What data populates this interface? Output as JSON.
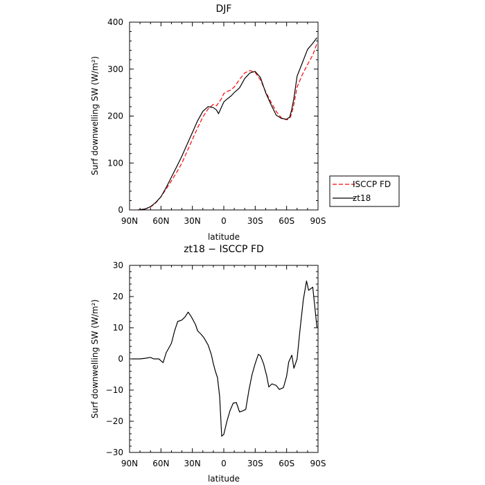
{
  "chart_data": [
    {
      "type": "line",
      "title": "DJF",
      "xlabel": "latitude",
      "ylabel": "Surf downwelling SW (W/m²)",
      "xlim": [
        90,
        -90
      ],
      "ylim": [
        0,
        400
      ],
      "xticks": [
        90,
        60,
        30,
        0,
        -30,
        -60,
        -90
      ],
      "xtick_labels": [
        "90N",
        "60N",
        "30N",
        "0",
        "30S",
        "60S",
        "90S"
      ],
      "yticks": [
        0,
        100,
        200,
        300,
        400
      ],
      "ytick_labels": [
        "0",
        "100",
        "200",
        "300",
        "400"
      ],
      "legend": "right-outside",
      "series": [
        {
          "name": "ISCCP FD",
          "color": "#ff0000",
          "style": "dashed",
          "x": [
            82,
            75,
            70,
            65,
            60,
            55,
            50,
            45,
            40,
            35,
            30,
            25,
            20,
            15,
            10,
            7,
            5,
            2,
            0,
            -3,
            -7,
            -10,
            -15,
            -20,
            -25,
            -30,
            -35,
            -40,
            -45,
            -50,
            -55,
            -60,
            -63,
            -65,
            -67,
            -70,
            -75,
            -80,
            -85,
            -89
          ],
          "y": [
            0,
            2,
            6,
            15,
            28,
            45,
            62,
            80,
            100,
            125,
            150,
            175,
            198,
            215,
            225,
            222,
            228,
            238,
            248,
            252,
            256,
            262,
            278,
            292,
            297,
            293,
            277,
            252,
            230,
            210,
            196,
            192,
            195,
            206,
            225,
            262,
            288,
            310,
            330,
            355
          ]
        },
        {
          "name": "zt18",
          "color": "#000000",
          "style": "solid",
          "x": [
            82,
            75,
            70,
            65,
            60,
            55,
            50,
            45,
            40,
            35,
            30,
            25,
            20,
            15,
            10,
            7,
            5,
            2,
            0,
            -3,
            -7,
            -10,
            -15,
            -20,
            -25,
            -30,
            -35,
            -40,
            -45,
            -50,
            -55,
            -60,
            -63,
            -65,
            -67,
            -70,
            -75,
            -80,
            -85,
            -89
          ],
          "y": [
            0,
            2,
            7,
            16,
            28,
            48,
            70,
            92,
            115,
            140,
            165,
            190,
            210,
            220,
            218,
            213,
            205,
            220,
            230,
            236,
            243,
            250,
            260,
            280,
            292,
            295,
            282,
            250,
            225,
            202,
            195,
            193,
            198,
            215,
            238,
            285,
            313,
            342,
            355,
            367
          ]
        }
      ]
    },
    {
      "type": "line",
      "title": "zt18 − ISCCP FD",
      "xlabel": "latitude",
      "ylabel": "Surf downwelling SW (W/m²)",
      "xlim": [
        90,
        -90
      ],
      "ylim": [
        -30,
        30
      ],
      "xticks": [
        90,
        60,
        30,
        0,
        -30,
        -60,
        -90
      ],
      "xtick_labels": [
        "90N",
        "60N",
        "30N",
        "0",
        "30S",
        "60S",
        "90S"
      ],
      "yticks": [
        -30,
        -20,
        -10,
        0,
        10,
        20,
        30
      ],
      "ytick_labels": [
        "−30",
        "−20",
        "−10",
        "0",
        "10",
        "20",
        "30"
      ],
      "series": [
        {
          "color": "#000000",
          "style": "solid",
          "x": [
            88,
            80,
            75,
            70,
            67,
            62,
            58,
            55,
            50,
            47,
            44,
            40,
            37,
            34,
            31,
            27,
            25,
            22,
            19,
            15,
            12,
            10,
            8,
            6,
            4,
            2,
            0,
            -3,
            -6,
            -9,
            -12,
            -15,
            -18,
            -21,
            -24,
            -27,
            -30,
            -33,
            -35,
            -38,
            -41,
            -43,
            -46,
            -50,
            -53,
            -57,
            -60,
            -62,
            -65,
            -67,
            -70,
            -73,
            -76,
            -79,
            -81,
            -85,
            -89
          ],
          "y": [
            0,
            0,
            0.2,
            0.5,
            0,
            0,
            -1.2,
            2,
            5,
            9,
            12,
            12.5,
            13.5,
            15,
            13.5,
            11,
            9,
            8,
            6.8,
            4.5,
            1.5,
            -1.5,
            -4,
            -6,
            -12,
            -24.8,
            -24.2,
            -20,
            -16.5,
            -14.2,
            -14,
            -17,
            -16.7,
            -16.2,
            -10,
            -5,
            -1.5,
            1.5,
            1,
            -1.5,
            -5.5,
            -9,
            -8,
            -8.5,
            -9.8,
            -9.2,
            -5.5,
            -1,
            1.2,
            -3,
            0,
            10,
            19,
            25,
            22,
            23,
            10
          ]
        }
      ]
    }
  ],
  "legend": {
    "entries": [
      "ISCCP FD",
      "zt18"
    ]
  }
}
